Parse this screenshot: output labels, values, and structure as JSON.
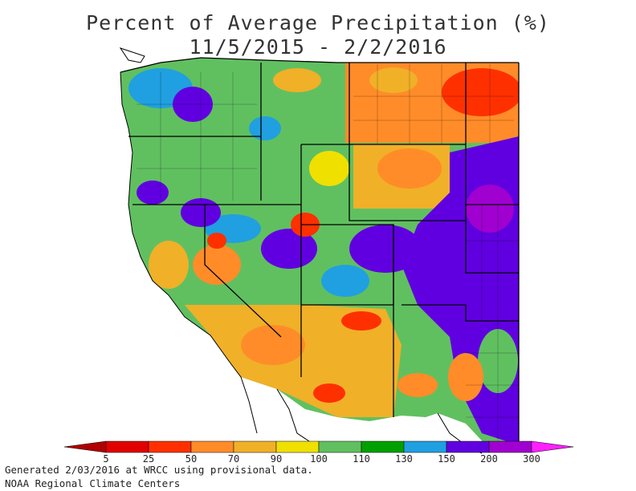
{
  "title": {
    "line1": "Percent of Average Precipitation (%)",
    "line2": "11/5/2015 - 2/2/2016"
  },
  "legend": {
    "ticks": [
      "5",
      "25",
      "50",
      "70",
      "90",
      "100",
      "110",
      "130",
      "150",
      "200",
      "300"
    ],
    "colors": [
      "#b00000",
      "#e00000",
      "#ff3000",
      "#ff8c28",
      "#f0b028",
      "#f0e000",
      "#c0e000",
      "#60c060",
      "#00a000",
      "#20a0e0",
      "#6000e0",
      "#a000d0",
      "#ff20ff"
    ]
  },
  "footer": {
    "line1": "Generated 2/03/2016 at WRCC using provisional data.",
    "line2": "NOAA Regional Climate Centers"
  }
}
